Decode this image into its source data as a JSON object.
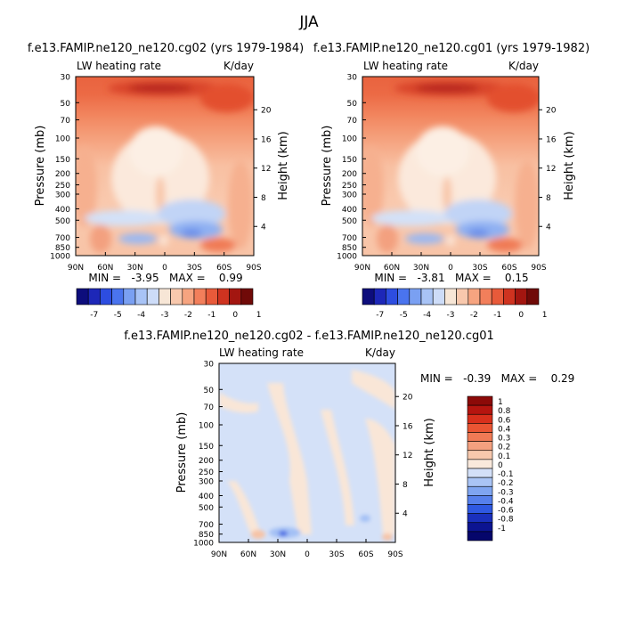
{
  "page": {
    "title": "JJA"
  },
  "chart_data": [
    {
      "type": "heatmap",
      "id": "p1",
      "title": "f.e13.FAMIP.ne120_ne120.cg02 (yrs 1979-1984)",
      "left_label": "LW heating rate",
      "right_label": "K/day",
      "ylabel": "Pressure (mb)",
      "ylabel_right": "Height (km)",
      "x_ticks": [
        "90N",
        "60N",
        "30N",
        "0",
        "30S",
        "60S",
        "90S"
      ],
      "y_ticks": [
        "30",
        "50",
        "70",
        "100",
        "150",
        "200",
        "250",
        "300",
        "400",
        "500",
        "700",
        "850",
        "1000"
      ],
      "height_ticks": [
        "20",
        "16",
        "12",
        "8",
        "4"
      ],
      "stats": "MIN =   -3.95   MAX =    0.99",
      "colorbar": {
        "orientation": "horizontal",
        "labels": [
          "-7",
          "-5",
          "-4",
          "-3",
          "-2",
          "-1",
          "0",
          "1"
        ],
        "colors": [
          "#0d0d7c",
          "#1d27b8",
          "#2d4de0",
          "#4a74ee",
          "#7aa0f2",
          "#a8c3f6",
          "#cddcf8",
          "#f7e6d6",
          "#f8c8ad",
          "#f6a480",
          "#f27f5b",
          "#e85a3a",
          "#cf3320",
          "#a31610",
          "#700a08"
        ]
      }
    },
    {
      "type": "heatmap",
      "id": "p2",
      "title": "f.e13.FAMIP.ne120_ne120.cg01 (yrs 1979-1982)",
      "left_label": "LW heating rate",
      "right_label": "K/day",
      "ylabel": "Pressure (mb)",
      "ylabel_right": "Height (km)",
      "x_ticks": [
        "90N",
        "60N",
        "30N",
        "0",
        "30S",
        "60S",
        "90S"
      ],
      "y_ticks": [
        "30",
        "50",
        "70",
        "100",
        "150",
        "200",
        "250",
        "300",
        "400",
        "500",
        "700",
        "850",
        "1000"
      ],
      "height_ticks": [
        "20",
        "16",
        "12",
        "8",
        "4"
      ],
      "stats": "MIN =   -3.81   MAX =    0.15",
      "colorbar": {
        "orientation": "horizontal",
        "labels": [
          "-7",
          "-5",
          "-4",
          "-3",
          "-2",
          "-1",
          "0",
          "1"
        ],
        "colors": [
          "#0d0d7c",
          "#1d27b8",
          "#2d4de0",
          "#4a74ee",
          "#7aa0f2",
          "#a8c3f6",
          "#cddcf8",
          "#f7e6d6",
          "#f8c8ad",
          "#f6a480",
          "#f27f5b",
          "#e85a3a",
          "#cf3320",
          "#a31610",
          "#700a08"
        ]
      }
    },
    {
      "type": "heatmap",
      "id": "p3",
      "title": "f.e13.FAMIP.ne120_ne120.cg02 - f.e13.FAMIP.ne120_ne120.cg01",
      "left_label": "LW heating rate",
      "right_label": "K/day",
      "ylabel": "Pressure (mb)",
      "ylabel_right": "Height (km)",
      "x_ticks": [
        "90N",
        "60N",
        "30N",
        "0",
        "30S",
        "60S",
        "90S"
      ],
      "y_ticks": [
        "30",
        "50",
        "70",
        "100",
        "150",
        "200",
        "250",
        "300",
        "400",
        "500",
        "700",
        "850",
        "1000"
      ],
      "height_ticks": [
        "20",
        "16",
        "12",
        "8",
        "4"
      ],
      "stats": "MIN =   -0.39   MAX =    0.29",
      "colorbar": {
        "orientation": "vertical",
        "labels": [
          "1",
          "0.8",
          "0.6",
          "0.4",
          "0.3",
          "0.2",
          "0.1",
          "0",
          "-0.1",
          "-0.2",
          "-0.3",
          "-0.4",
          "-0.6",
          "-0.8",
          "-1"
        ],
        "colors": [
          "#8c0a08",
          "#b5150f",
          "#d8301c",
          "#ea5533",
          "#f07a55",
          "#f4a07f",
          "#f7c8ad",
          "#f9e9dc",
          "#d3e0f8",
          "#a9c4f5",
          "#7fa5f1",
          "#5680ec",
          "#2f59e2",
          "#1a30bd",
          "#0c1491",
          "#05066b"
        ]
      }
    }
  ]
}
